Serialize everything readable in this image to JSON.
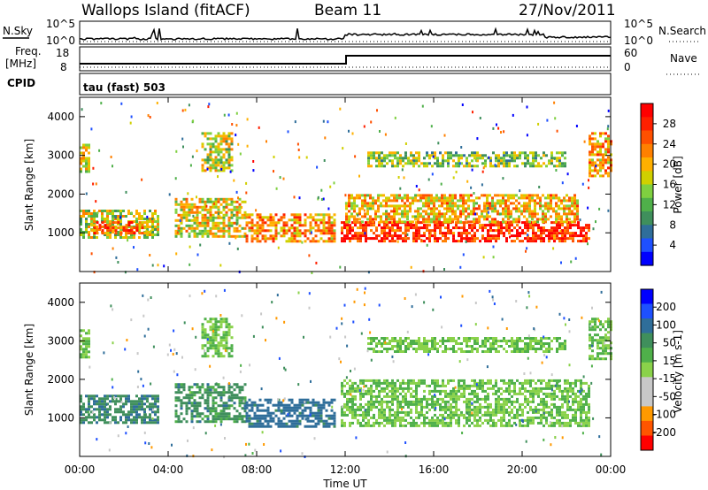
{
  "header": {
    "site": "Wallops Island (fitACF)",
    "beam": "Beam 11",
    "date": "27/Nov/2011"
  },
  "strip_labels": {
    "nsky": "N.Sky",
    "nsearch": "N.Search",
    "freq": "Freq.",
    "freq_unit": "[MHz]",
    "nave": "Nave",
    "cpid": "CPID",
    "cpid_text": "tau (fast) 503"
  },
  "strip_ticks": {
    "noise_left": [
      "10^5",
      "10^0"
    ],
    "noise_right": [
      "10^5",
      "10^0"
    ],
    "freq_left": [
      "18",
      "8"
    ],
    "nave_right": [
      "60",
      "0"
    ]
  },
  "colors": {
    "power": [
      "#0000ff",
      "#1e50ff",
      "#2f6e9a",
      "#3f8f5c",
      "#4fb04a",
      "#7fd040",
      "#d0d000",
      "#ffb000",
      "#ff8000",
      "#ff5000",
      "#ff2000",
      "#ff0000"
    ],
    "velocity": [
      "#ff0000",
      "#ff5500",
      "#ff9900",
      "#c8c8c8",
      "#c8c8c8",
      "#8ad24a",
      "#4fb04a",
      "#3f8f5c",
      "#2f6e9a",
      "#1e50ff",
      "#0000ff"
    ]
  },
  "chart_data": [
    {
      "type": "heatmap",
      "panel": "power",
      "ylabel": "Slant Range [km]",
      "x_range_hours": [
        0,
        24
      ],
      "ylim": [
        0,
        4500
      ],
      "y_ticks": [
        1000,
        2000,
        3000,
        4000
      ],
      "colorbar": {
        "label": "Power [dB]",
        "ticks": [
          4,
          8,
          12,
          16,
          20,
          24,
          28
        ],
        "range": [
          0,
          32
        ]
      },
      "regions": [
        {
          "t": [
            0.0,
            0.4
          ],
          "r": [
            2600,
            3300
          ],
          "v": 18
        },
        {
          "t": [
            0.0,
            3.5
          ],
          "r": [
            900,
            1600
          ],
          "v": 16
        },
        {
          "t": [
            0.5,
            3.0
          ],
          "r": [
            1000,
            1300
          ],
          "v": 24
        },
        {
          "t": [
            4.3,
            7.5
          ],
          "r": [
            900,
            1900
          ],
          "v": 18
        },
        {
          "t": [
            5.5,
            6.9
          ],
          "r": [
            2600,
            3600
          ],
          "v": 16
        },
        {
          "t": [
            7.5,
            11.5
          ],
          "r": [
            800,
            1500
          ],
          "v": 22
        },
        {
          "t": [
            11.8,
            23.0
          ],
          "r": [
            800,
            1300
          ],
          "v": 28
        },
        {
          "t": [
            12.0,
            22.5
          ],
          "r": [
            1300,
            2000
          ],
          "v": 20
        },
        {
          "t": [
            13.0,
            22.0
          ],
          "r": [
            2700,
            3100
          ],
          "v": 14
        },
        {
          "t": [
            23.0,
            24.0
          ],
          "r": [
            2500,
            3600
          ],
          "v": 22
        }
      ]
    },
    {
      "type": "heatmap",
      "panel": "velocity",
      "ylabel": "Slant Range [km]",
      "x_range_hours": [
        0,
        24
      ],
      "ylim": [
        0,
        4500
      ],
      "y_ticks": [
        1000,
        2000,
        3000,
        4000
      ],
      "xlabel": "Time UT",
      "x_ticks": [
        "00:00",
        "04:00",
        "08:00",
        "12:00",
        "16:00",
        "20:00",
        "00:00"
      ],
      "colorbar": {
        "label": "Velocity [m s-1]",
        "ticks": [
          200,
          100,
          50,
          15,
          -15,
          -50,
          -100,
          -200
        ]
      },
      "regions": [
        {
          "t": [
            0.0,
            0.4
          ],
          "r": [
            2600,
            3300
          ],
          "v": 0
        },
        {
          "t": [
            0.0,
            3.5
          ],
          "r": [
            900,
            1600
          ],
          "v": 40
        },
        {
          "t": [
            4.3,
            7.5
          ],
          "r": [
            900,
            1900
          ],
          "v": 30
        },
        {
          "t": [
            5.5,
            6.9
          ],
          "r": [
            2600,
            3600
          ],
          "v": 0
        },
        {
          "t": [
            7.5,
            11.5
          ],
          "r": [
            800,
            1500
          ],
          "v": 70
        },
        {
          "t": [
            11.8,
            23.0
          ],
          "r": [
            800,
            2000
          ],
          "v": 0
        },
        {
          "t": [
            13.0,
            22.0
          ],
          "r": [
            2700,
            3100
          ],
          "v": 0
        },
        {
          "t": [
            23.0,
            24.0
          ],
          "r": [
            2500,
            3600
          ],
          "v": 0
        }
      ]
    }
  ]
}
